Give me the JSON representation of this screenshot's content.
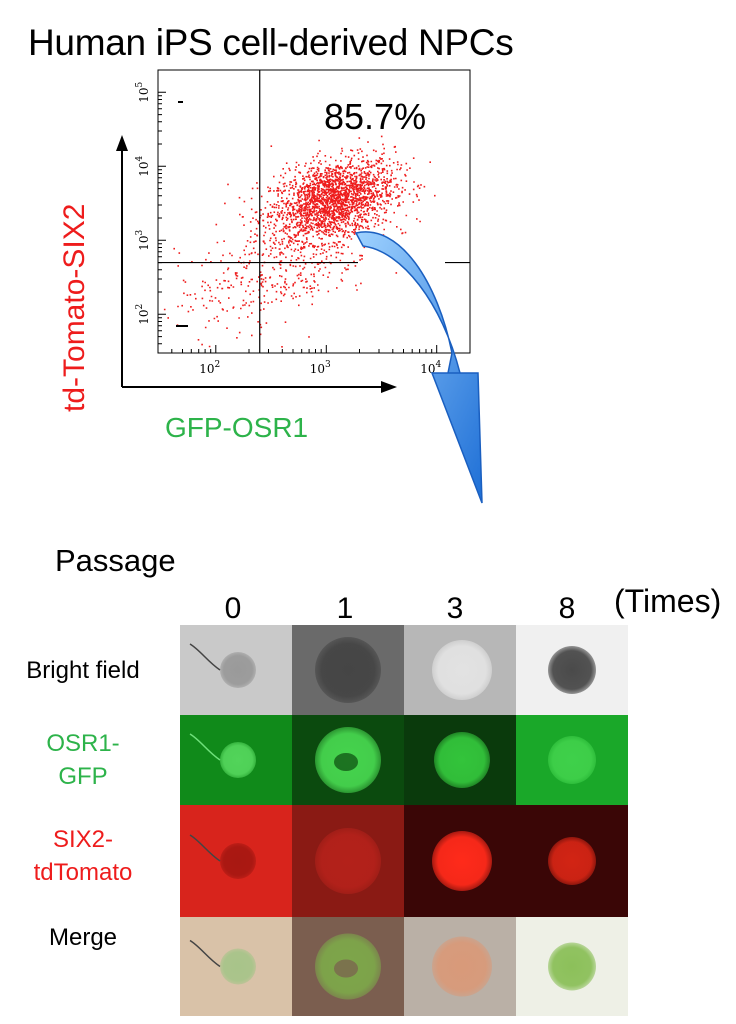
{
  "title": "Human iPS cell-derived NPCs",
  "facs": {
    "y_label": "td-Tomato-SIX2",
    "x_label": "GFP-OSR1",
    "percentage": "85.7%",
    "x_ticks": [
      {
        "base": "10",
        "exp": "2",
        "value": 100
      },
      {
        "base": "10",
        "exp": "3",
        "value": 1000
      },
      {
        "base": "10",
        "exp": "4",
        "value": 10000
      }
    ],
    "y_ticks": [
      {
        "base": "10",
        "exp": "2",
        "value": 100
      },
      {
        "base": "10",
        "exp": "3",
        "value": 1000
      },
      {
        "base": "10",
        "exp": "4",
        "value": 10000
      },
      {
        "base": "10",
        "exp": "5",
        "value": 100000
      }
    ],
    "gate_x": 250,
    "gate_y": 500,
    "x_range": [
      30,
      20000
    ],
    "y_range": [
      30,
      200000
    ],
    "scale": "log",
    "dot_color": "#ee1c1c",
    "arrow_color": "#2f8fe8"
  },
  "passage": {
    "label": "Passage",
    "columns": [
      "0",
      "1",
      "3",
      "8"
    ],
    "unit": "(Times)",
    "rows": [
      {
        "label": [
          "Bright field"
        ],
        "color": "#000000"
      },
      {
        "label": [
          "OSR1-",
          "GFP"
        ],
        "color": "#2db34a"
      },
      {
        "label": [
          "SIX2-",
          "tdTomato"
        ],
        "color": "#ee1c1c"
      },
      {
        "label": [
          "Merge"
        ],
        "color": "#000000"
      }
    ]
  }
}
